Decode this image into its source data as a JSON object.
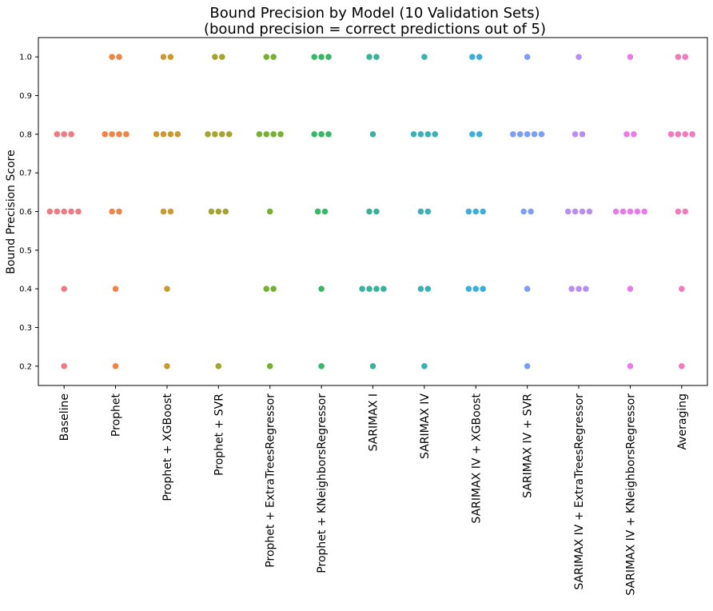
{
  "chart_data": {
    "type": "scatter",
    "subtype": "swarm",
    "title_line1": "Bound Precision by Model (10 Validation Sets)",
    "title_line2": "(bound precision = correct predictions out of 5)",
    "xlabel": "",
    "ylabel": "Bound Precision Score",
    "ylim": [
      0.15,
      1.05
    ],
    "yticks": [
      "0.2",
      "0.3",
      "0.4",
      "0.5",
      "0.6",
      "0.7",
      "0.8",
      "0.9",
      "1.0"
    ],
    "grid": false,
    "categories": [
      "Baseline",
      "Prophet",
      "Prophet + XGBoost",
      "Prophet + SVR",
      "Prophet + ExtraTreesRegressor",
      "Prophet + KNeighborsRegressor",
      "SARIMAX I",
      "SARIMAX IV",
      "SARIMAX IV + XGBoost",
      "SARIMAX IV + SVR",
      "SARIMAX IV + ExtraTreesRegressor",
      "SARIMAX IV + KNeighborsRegressor",
      "Averaging"
    ],
    "colors": [
      "#f07a82",
      "#ee8446",
      "#c99a31",
      "#a5a431",
      "#77b033",
      "#37b864",
      "#39b29c",
      "#3ab2b5",
      "#3aafd9",
      "#7a9ff5",
      "#b98ef0",
      "#eb7ae8",
      "#f27bbf"
    ],
    "series": [
      {
        "values": [
          0.8,
          0.8,
          0.8,
          0.6,
          0.6,
          0.6,
          0.6,
          0.6,
          0.4,
          0.2
        ]
      },
      {
        "values": [
          1.0,
          1.0,
          0.8,
          0.8,
          0.8,
          0.8,
          0.6,
          0.6,
          0.4,
          0.2
        ]
      },
      {
        "values": [
          1.0,
          1.0,
          0.8,
          0.8,
          0.8,
          0.8,
          0.6,
          0.6,
          0.4,
          0.2
        ]
      },
      {
        "values": [
          1.0,
          1.0,
          0.8,
          0.8,
          0.8,
          0.8,
          0.6,
          0.6,
          0.6,
          0.2
        ]
      },
      {
        "values": [
          1.0,
          1.0,
          0.8,
          0.8,
          0.8,
          0.8,
          0.6,
          0.4,
          0.4,
          0.2
        ]
      },
      {
        "values": [
          1.0,
          1.0,
          1.0,
          0.8,
          0.8,
          0.8,
          0.6,
          0.6,
          0.4,
          0.2
        ]
      },
      {
        "values": [
          1.0,
          1.0,
          0.8,
          0.6,
          0.6,
          0.4,
          0.4,
          0.4,
          0.4,
          0.2
        ]
      },
      {
        "values": [
          1.0,
          0.8,
          0.8,
          0.8,
          0.8,
          0.6,
          0.6,
          0.4,
          0.4,
          0.2
        ]
      },
      {
        "values": [
          1.0,
          1.0,
          0.8,
          0.8,
          0.6,
          0.6,
          0.6,
          0.4,
          0.4,
          0.4
        ]
      },
      {
        "values": [
          1.0,
          0.8,
          0.8,
          0.8,
          0.8,
          0.8,
          0.6,
          0.6,
          0.4,
          0.2
        ]
      },
      {
        "values": [
          1.0,
          0.8,
          0.8,
          0.6,
          0.6,
          0.6,
          0.6,
          0.4,
          0.4,
          0.4
        ]
      },
      {
        "values": [
          1.0,
          0.8,
          0.8,
          0.6,
          0.6,
          0.6,
          0.6,
          0.6,
          0.4,
          0.2
        ]
      },
      {
        "values": [
          1.0,
          1.0,
          0.8,
          0.8,
          0.8,
          0.8,
          0.6,
          0.6,
          0.4,
          0.2
        ]
      }
    ]
  }
}
